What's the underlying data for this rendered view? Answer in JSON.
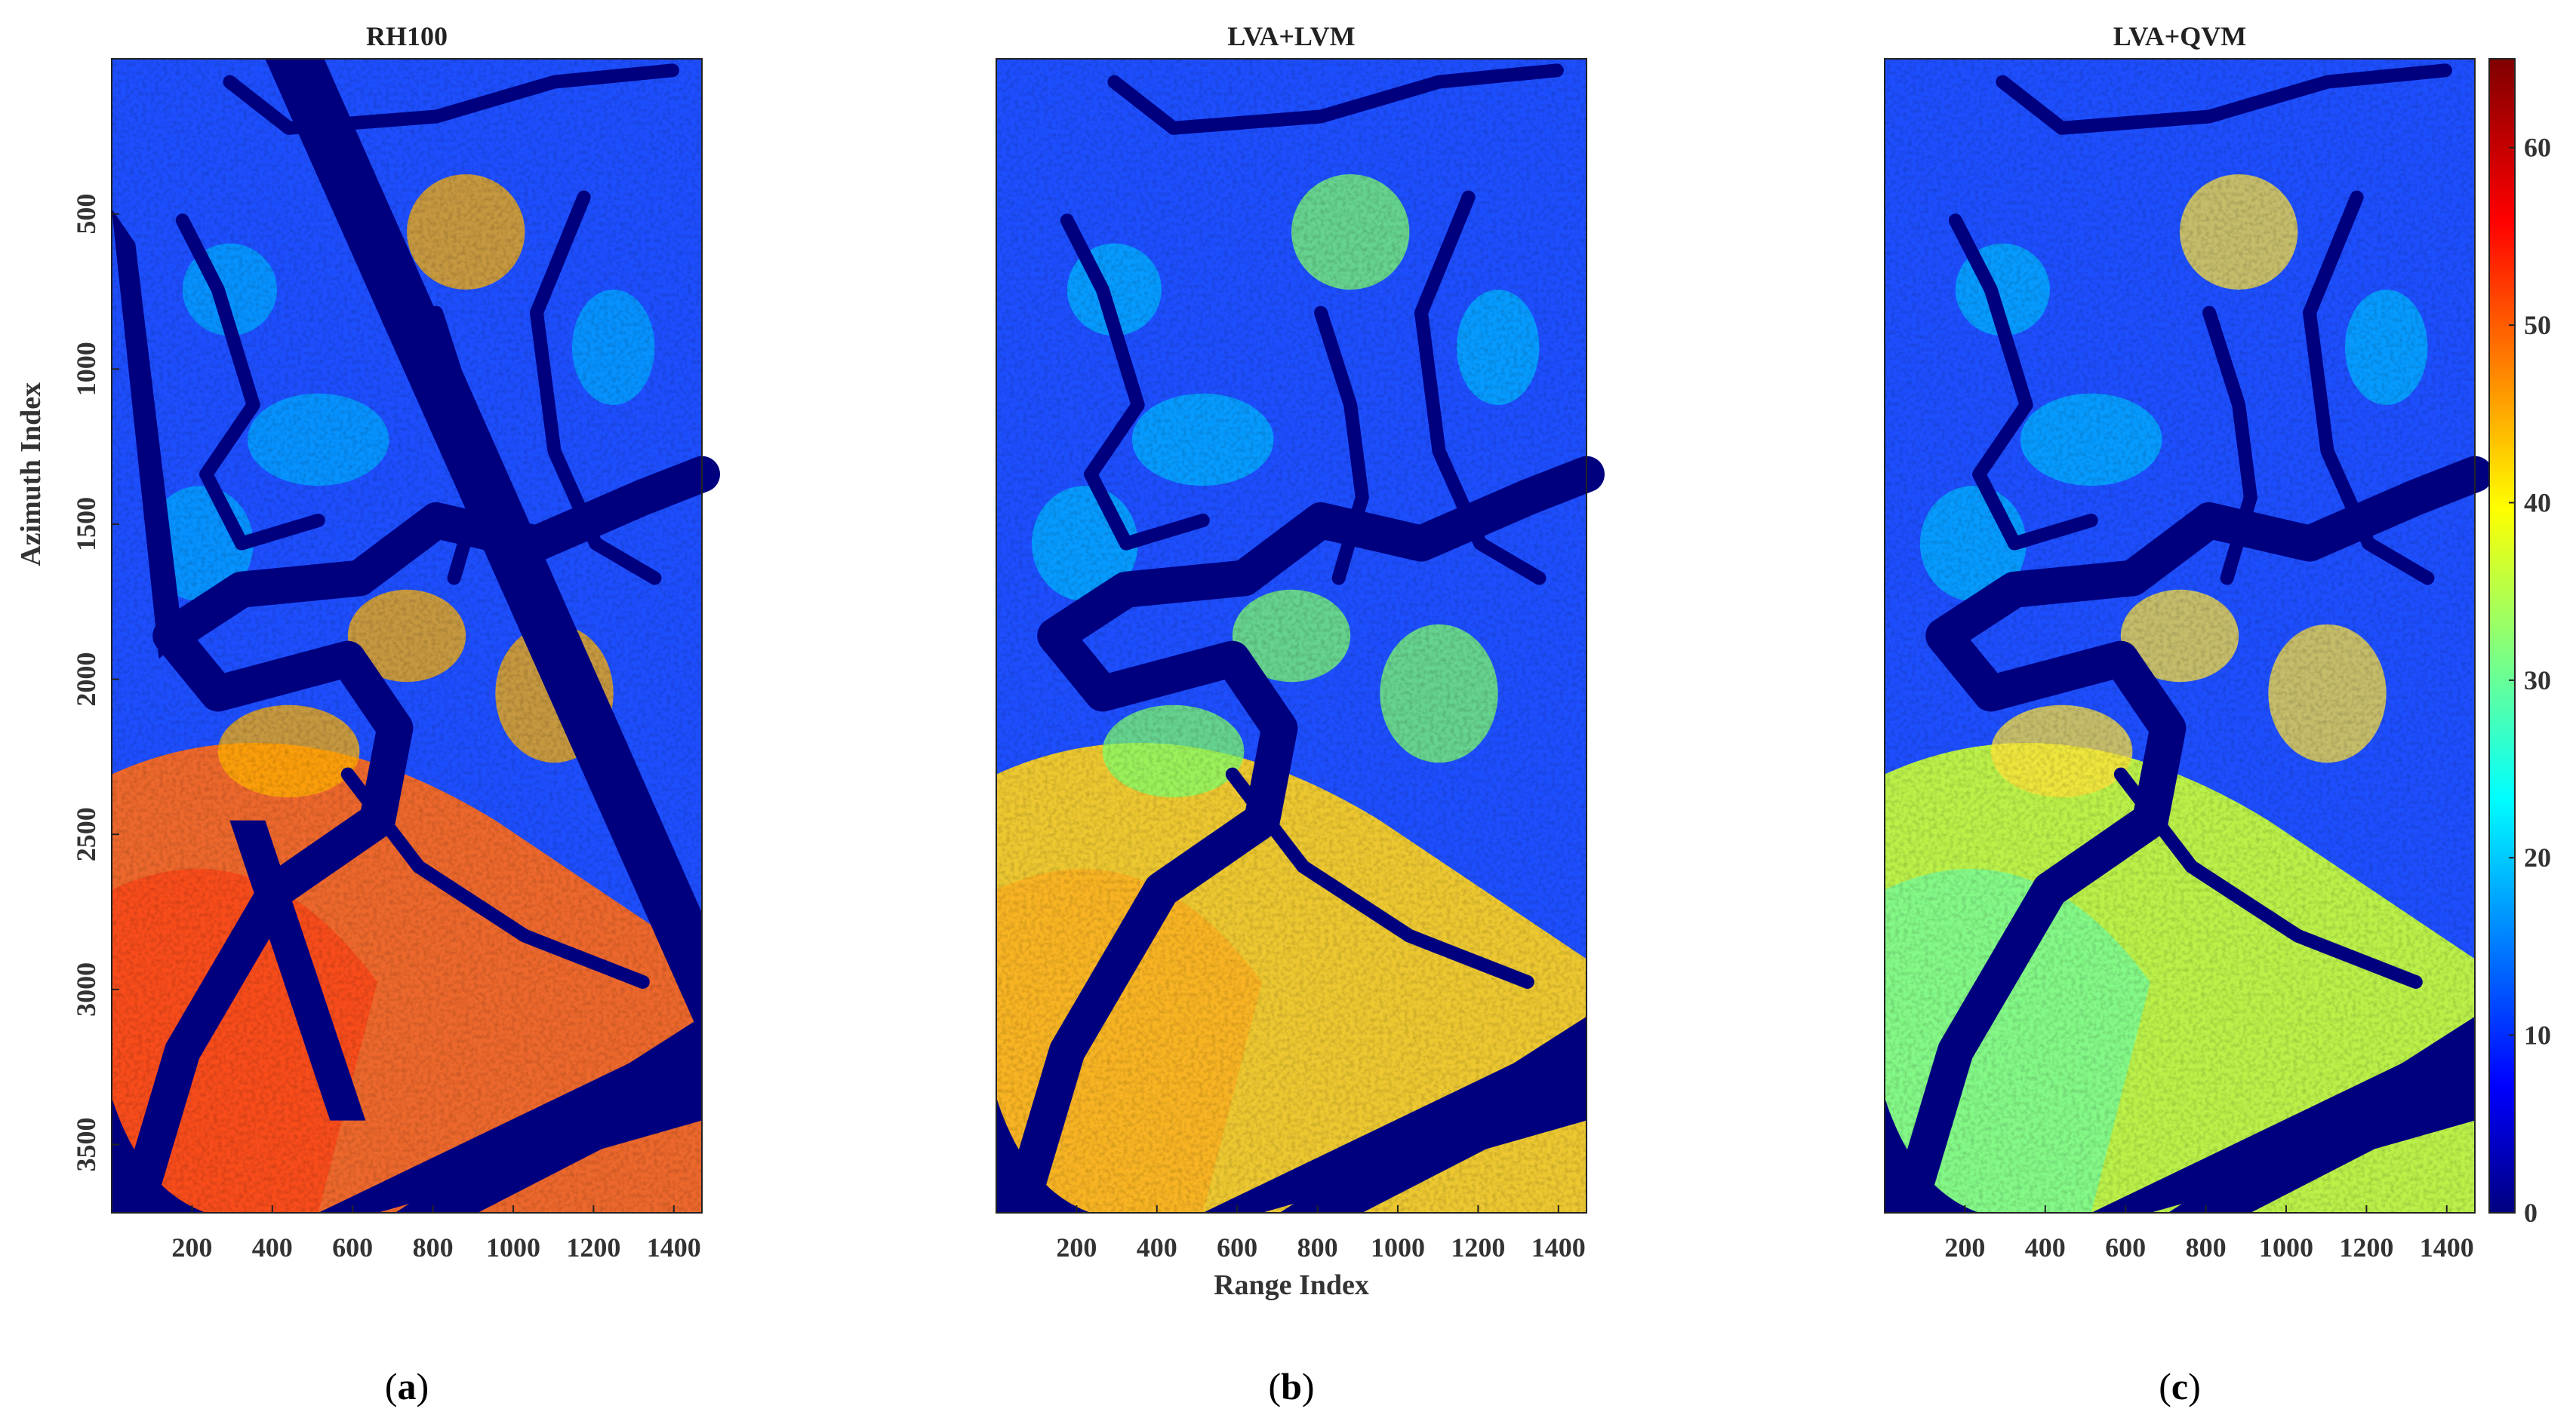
{
  "chart_data": [
    {
      "type": "heatmap",
      "title": "RH100",
      "xlabel": "",
      "ylabel": "Azimuth Index",
      "xlim": [
        0,
        1470
      ],
      "ylim": [
        3720,
        0
      ],
      "xticks": [
        "200",
        "400",
        "600",
        "800",
        "1000",
        "1200",
        "1400"
      ],
      "yticks": [
        "500",
        "1000",
        "1500",
        "2000",
        "2500",
        "3000",
        "3500"
      ],
      "panel_label": {
        "open": "(",
        "letter": "a",
        "close": ")"
      }
    },
    {
      "type": "heatmap",
      "title": "LVA+LVM",
      "xlabel": "Range Index",
      "ylabel": "",
      "xlim": [
        0,
        1470
      ],
      "ylim": [
        3720,
        0
      ],
      "xticks": [
        "200",
        "400",
        "600",
        "800",
        "1000",
        "1200",
        "1400"
      ],
      "yticks": [],
      "panel_label": {
        "open": "(",
        "letter": "b",
        "close": ")"
      }
    },
    {
      "type": "heatmap",
      "title": "LVA+QVM",
      "xlabel": "",
      "ylabel": "",
      "xlim": [
        0,
        1470
      ],
      "ylim": [
        3720,
        0
      ],
      "xticks": [
        "200",
        "400",
        "600",
        "800",
        "1000",
        "1200",
        "1400"
      ],
      "yticks": [],
      "panel_label": {
        "open": "(",
        "letter": "c",
        "close": ")"
      },
      "colorbar": {
        "range": [
          0,
          65
        ],
        "ticks": [
          "0",
          "10",
          "20",
          "30",
          "40",
          "50",
          "60"
        ],
        "colormap": "jet"
      }
    }
  ],
  "colors": {
    "water": "#00007f",
    "low": "#0000ff",
    "mid": "#00ffff",
    "high": "#ffff00",
    "very_high": "#ff0000",
    "max": "#7f0000"
  }
}
